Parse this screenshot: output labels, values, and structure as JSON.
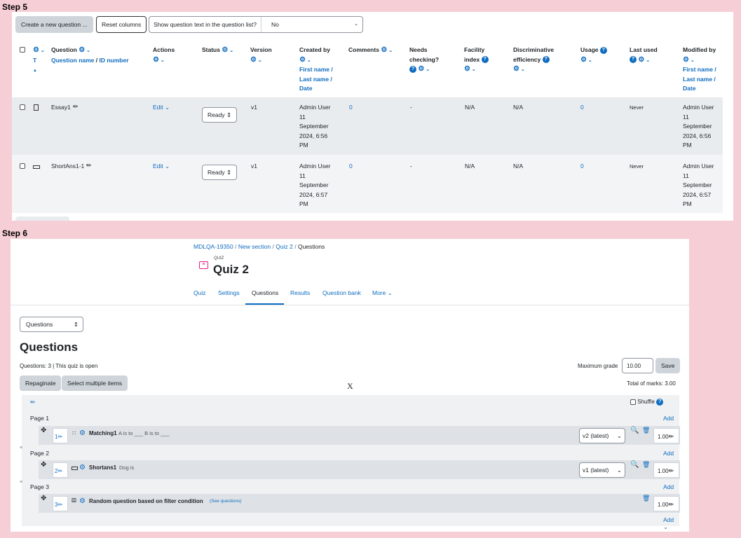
{
  "steps": {
    "step5": "Step 5",
    "step6": "Step 6"
  },
  "bank": {
    "toolbar": {
      "create_label": "Create a new question ...",
      "reset_label": "Reset columns",
      "show_text_label": "Show question text in the question list?",
      "show_text_value": "No"
    },
    "headers": {
      "t": "T",
      "question": "Question",
      "question_sub_name": "Question name",
      "question_sub_sep": " / ",
      "question_sub_id": "ID number",
      "actions": "Actions",
      "status": "Status",
      "version": "Version",
      "created_by_line1": "Created by",
      "created_by_sub1": "First name /",
      "created_by_sub2": "Last name /",
      "created_by_sub3": "Date",
      "comments": "Comments",
      "needs_checking_line1": "Needs",
      "needs_checking_line2": "checking?",
      "facility_line1": "Facility",
      "facility_line2": "index",
      "discrim_line1": "Discriminative",
      "discrim_line2": "efficiency",
      "usage": "Usage",
      "last_used": "Last used",
      "modified_line1": "Modified by",
      "modified_sub1": "First name /",
      "modified_sub2": "Last name /",
      "modified_sub3": "Date"
    },
    "rows": [
      {
        "name": "Essay1",
        "action": "Edit",
        "status": "Ready",
        "version": "v1",
        "created": [
          "Admin User",
          "11",
          "September",
          "2024, 6:56",
          "PM"
        ],
        "comments": "0",
        "needs_checking": "-",
        "facility": "N/A",
        "discrim": "N/A",
        "usage": "0",
        "last_used": "Never",
        "modified": [
          "Admin User",
          "11",
          "September",
          "2024, 6:56",
          "PM"
        ]
      },
      {
        "name": "ShortAns1-1",
        "action": "Edit",
        "status": "Ready",
        "version": "v1",
        "created": [
          "Admin User",
          "11",
          "September",
          "2024, 6:57",
          "PM"
        ],
        "comments": "0",
        "needs_checking": "-",
        "facility": "N/A",
        "discrim": "N/A",
        "usage": "0",
        "last_used": "Never",
        "modified": [
          "Admin User",
          "11",
          "September",
          "2024, 6:57",
          "PM"
        ]
      }
    ]
  },
  "quiz": {
    "breadcrumb": [
      "MDLQA-19350",
      "New section",
      "Quiz 2",
      "Questions"
    ],
    "breadcrumb_sep": "/",
    "module_type": "QUIZ",
    "title": "Quiz 2",
    "tabs": [
      "Quiz",
      "Settings",
      "Questions",
      "Results",
      "Question bank",
      "More"
    ],
    "active_tab": "Questions",
    "nav_select": "Questions",
    "heading": "Questions",
    "info": "Questions: 3 | This quiz is open",
    "max_grade_label": "Maximum grade",
    "max_grade_value": "10.00",
    "save_label": "Save",
    "repaginate_label": "Repaginate",
    "select_multiple_label": "Select multiple items",
    "stray_mark": "X",
    "total_marks": "Total of marks: 3.00",
    "shuffle_label": "Shuffle",
    "add_label": "Add",
    "pages": [
      {
        "label": "Page 1",
        "question": {
          "num": "1",
          "name": "Matching1",
          "text": "A is to ___ B is to ___",
          "version": "v2 (latest)",
          "mark": "1.00"
        }
      },
      {
        "label": "Page 2",
        "question": {
          "num": "2",
          "name": "Shortans1",
          "text": "Dog is",
          "version": "v1 (latest)",
          "mark": "1.00"
        }
      },
      {
        "label": "Page 3",
        "question": {
          "num": "3",
          "name": "Random question based on filter condition",
          "text": "(See questions)",
          "version": "",
          "mark": "1.00"
        }
      }
    ]
  }
}
